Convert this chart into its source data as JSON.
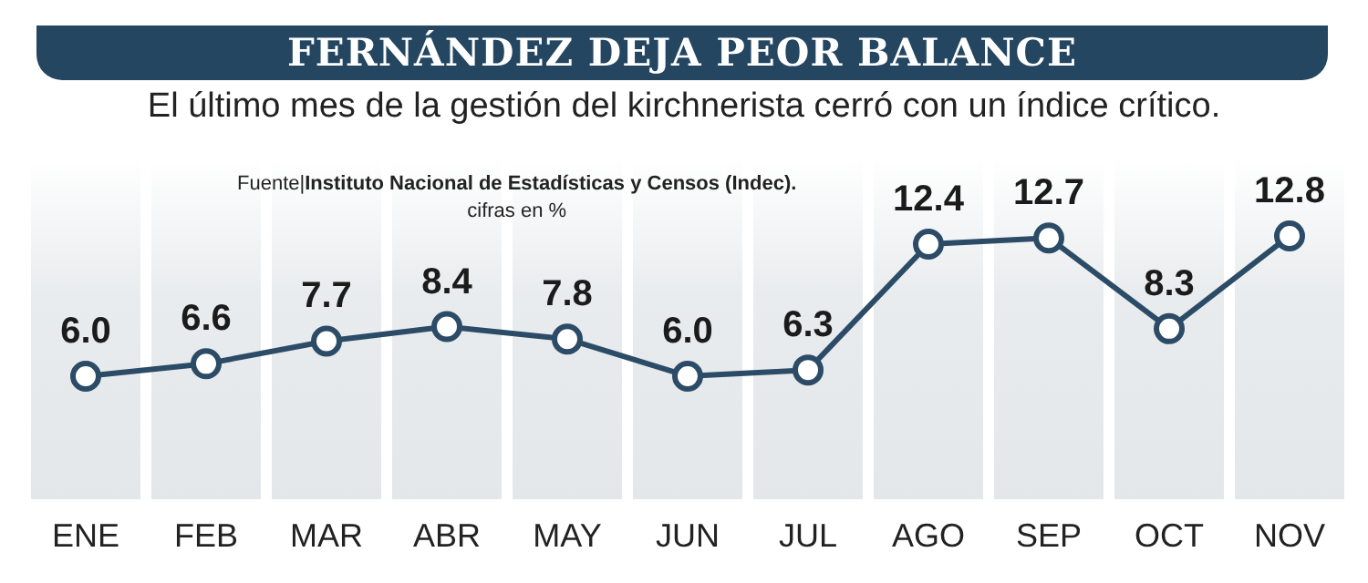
{
  "chart_data": {
    "type": "line",
    "title": "FERNÁNDEZ DEJA PEOR BALANCE",
    "subtitle": "El último mes de la gestión del kirchnerista cerró con un índice crítico.",
    "annotations": [
      "Fuente|Instituto Nacional de Estadísticas y Censos (Indec).",
      "cifras en %"
    ],
    "categories": [
      "ENE",
      "FEB",
      "MAR",
      "ABR",
      "MAY",
      "JUN",
      "JUL",
      "AGO",
      "SEP",
      "OCT",
      "NOV"
    ],
    "series": [
      {
        "color": "#2b4b66",
        "values": [
          6.0,
          6.6,
          7.7,
          8.4,
          7.8,
          6.0,
          6.3,
          12.4,
          12.7,
          8.3,
          12.8
        ],
        "value_labels": [
          "6.0",
          "6.6",
          "7.7",
          "8.4",
          "7.8",
          "6.0",
          "6.3",
          "12.4",
          "12.7",
          "8.3",
          "12.8"
        ]
      }
    ],
    "marker": "circle",
    "line_style": "solid",
    "grid": false,
    "legend": false
  }
}
